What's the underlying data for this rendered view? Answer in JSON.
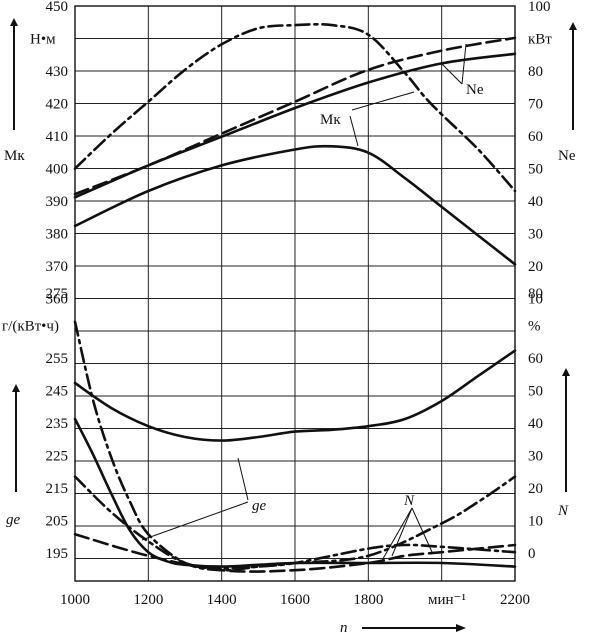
{
  "chart_data": {
    "type": "line",
    "x_axis": {
      "label": "n",
      "unit": "мин⁻¹",
      "range": [
        1000,
        2200
      ],
      "ticks": [
        1000,
        1200,
        1400,
        1600,
        1800,
        2000,
        2200
      ],
      "tick_labels": [
        "1000",
        "1200",
        "1400",
        "1600",
        "1800",
        "",
        "2200"
      ]
    },
    "upper_left_axis": {
      "label": "Mк",
      "unit": "Н•м",
      "range": [
        360,
        450
      ],
      "ticks": [
        "450",
        "",
        "430",
        "420",
        "410",
        "400",
        "390",
        "380",
        "370",
        "360"
      ]
    },
    "upper_right_axis": {
      "label": "Nе",
      "unit": "кВт",
      "range": [
        10,
        100
      ],
      "ticks": [
        "100",
        "",
        "80",
        "70",
        "60",
        "50",
        "40",
        "30",
        "20",
        "10"
      ]
    },
    "lower_left_axis": {
      "label": "gе",
      "unit": "г/(кВт•ч)",
      "range": [
        195,
        275
      ],
      "ticks": [
        "275",
        "",
        "255",
        "245",
        "235",
        "225",
        "215",
        "205",
        "195"
      ]
    },
    "lower_right_axis": {
      "label": "N",
      "unit": "%",
      "range": [
        0,
        80
      ],
      "ticks": [
        "80",
        "",
        "60",
        "50",
        "40",
        "30",
        "20",
        "10",
        "0"
      ]
    },
    "series": [
      {
        "name": "Mк",
        "axis": "upper_left",
        "style": "solid",
        "x": [
          1000,
          1200,
          1400,
          1600,
          1700,
          1800,
          1900,
          2000,
          2100,
          2200
        ],
        "y": [
          381,
          392,
          400,
          405,
          406,
          404,
          396,
          387,
          378,
          369
        ]
      },
      {
        "name": "Mк",
        "axis": "upper_left",
        "style": "solid",
        "x": [
          1000,
          1200,
          1400,
          1600,
          1800,
          2000,
          2200
        ],
        "y": [
          390,
          400,
          409,
          418,
          426,
          432,
          435
        ]
      },
      {
        "name": "Nе",
        "axis": "upper_right",
        "style": "dash",
        "x": [
          1000,
          1200,
          1400,
          1600,
          1800,
          2000,
          2200
        ],
        "y": [
          41,
          50,
          60,
          70,
          80,
          86,
          90
        ]
      },
      {
        "name": "Nе",
        "axis": "upper_right",
        "style": "dashdot",
        "x": [
          1000,
          1100,
          1200,
          1300,
          1400,
          1500,
          1600,
          1700,
          1800,
          1900,
          1950,
          2000,
          2100,
          2200
        ],
        "y": [
          49,
          60,
          70,
          80,
          88,
          93,
          94,
          94,
          91,
          79,
          72,
          66,
          55,
          42
        ]
      },
      {
        "name": "gе",
        "axis": "lower_left",
        "style": "solid",
        "x": [
          1000,
          1100,
          1200,
          1300,
          1400,
          1500,
          1600,
          1700,
          1800,
          1900,
          2000,
          2100,
          2200
        ],
        "y": [
          250,
          243,
          238,
          235,
          234,
          235,
          236.5,
          237,
          238,
          240,
          245,
          252,
          259
        ]
      },
      {
        "name": "gе",
        "axis": "lower_left",
        "style": "solid",
        "x": [
          1000,
          1050,
          1100,
          1150,
          1200,
          1250,
          1300,
          1400,
          1500,
          1600,
          1800,
          2000,
          2200
        ],
        "y": [
          240,
          230,
          219,
          209,
          203,
          200.5,
          199.5,
          199,
          199.5,
          200,
          200,
          200,
          199
        ]
      },
      {
        "name": "N",
        "axis": "lower_right",
        "style": "dashdot",
        "x": [
          1000,
          1050,
          1100,
          1150,
          1200,
          1300,
          1400,
          1500,
          1600,
          1800,
          1900,
          2000,
          2200
        ],
        "y": [
          72,
          50,
          34,
          22,
          13,
          5,
          3,
          4,
          5,
          9,
          10,
          9.5,
          8
        ]
      },
      {
        "name": "N",
        "axis": "lower_right",
        "style": "dashdot",
        "x": [
          1000,
          1100,
          1200,
          1300,
          1400,
          1500,
          1600,
          1800,
          2000,
          2100,
          2200
        ],
        "y": [
          29,
          19,
          11,
          5,
          3.5,
          4,
          5,
          7,
          16,
          22,
          29
        ]
      },
      {
        "name": "N",
        "axis": "lower_right",
        "style": "dash",
        "x": [
          1000,
          1200,
          1400,
          1600,
          1800,
          1900,
          2000,
          2200
        ],
        "y": [
          13,
          7,
          3,
          3,
          5,
          7,
          8,
          10
        ]
      }
    ],
    "annotations": [
      "Nе",
      "Mк",
      "gе",
      "N"
    ],
    "grid": true
  }
}
